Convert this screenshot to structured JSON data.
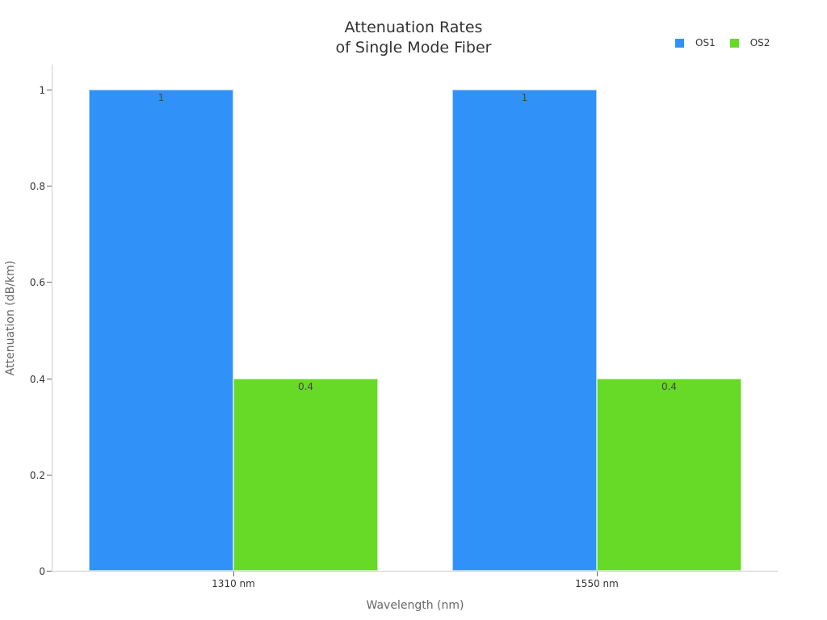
{
  "chart_data": {
    "type": "bar",
    "title": "Attenuation Rates\nof Single Mode Fiber",
    "title_lines": [
      "Attenuation Rates",
      "of Single Mode Fiber"
    ],
    "xlabel": "Wavelength (nm)",
    "ylabel": "Attenuation (dB/km)",
    "categories": [
      "1310 nm",
      "1550 nm"
    ],
    "series": [
      {
        "name": "OS1",
        "color": "#3092f8",
        "values": [
          1,
          1
        ],
        "labels": [
          "1",
          "1"
        ]
      },
      {
        "name": "OS2",
        "color": "#66da26",
        "values": [
          0.4,
          0.4
        ],
        "labels": [
          "0.4",
          "0.4"
        ]
      }
    ],
    "ylim": [
      0,
      1.05
    ],
    "yticks": [
      0,
      0.2,
      0.4,
      0.6,
      0.8,
      1
    ],
    "ytick_labels": [
      "0",
      "0.2",
      "0.4",
      "0.6",
      "0.8",
      "1"
    ],
    "grid": false,
    "legend_position": "top-right"
  },
  "legend": [
    {
      "label": "OS1",
      "color": "#3092f8"
    },
    {
      "label": "OS2",
      "color": "#66da26"
    }
  ]
}
